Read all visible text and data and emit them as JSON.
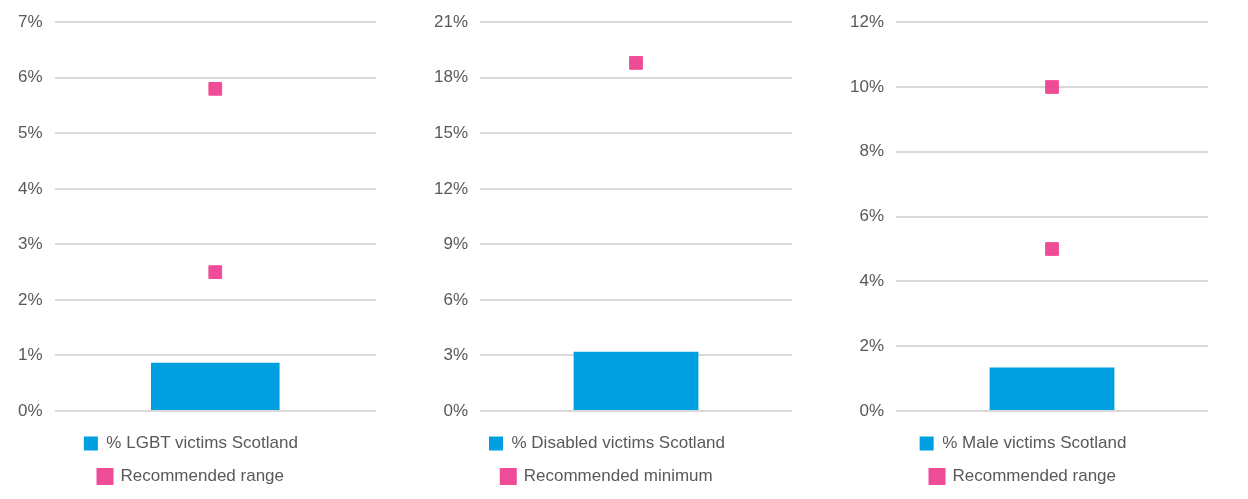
{
  "chart_data": [
    {
      "type": "bar",
      "categories": [
        null
      ],
      "ylim": [
        0,
        7
      ],
      "yticks": [
        {
          "value": 0,
          "label": "0%"
        },
        {
          "value": 1,
          "label": "1%"
        },
        {
          "value": 2,
          "label": "2%"
        },
        {
          "value": 3,
          "label": "3%"
        },
        {
          "value": 4,
          "label": "4%"
        },
        {
          "value": 5,
          "label": "5%"
        },
        {
          "value": 6,
          "label": "6%"
        },
        {
          "value": 7,
          "label": "7%"
        }
      ],
      "grid": "y",
      "legend": "bottom",
      "tick_labels": "y",
      "marker": "square",
      "series": [
        {
          "name": "% LGBT victims Scotland",
          "color": "#009fdf",
          "values": [
            0.87
          ]
        },
        {
          "name": "Recommended range",
          "type": "scatter",
          "color": "#ef4c97",
          "values": [
            5.8
          ]
        },
        {
          "type": "scatter",
          "color": "#ef4c97",
          "values": [
            2.5
          ]
        }
      ]
    },
    {
      "type": "bar",
      "categories": [
        null
      ],
      "ylim": [
        0,
        21
      ],
      "yticks": [
        {
          "value": 0,
          "label": "0%"
        },
        {
          "value": 3,
          "label": "3%"
        },
        {
          "value": 6,
          "label": "6%"
        },
        {
          "value": 9,
          "label": "9%"
        },
        {
          "value": 12,
          "label": "12%"
        },
        {
          "value": 15,
          "label": "15%"
        },
        {
          "value": 18,
          "label": "18%"
        },
        {
          "value": 21,
          "label": "21%"
        }
      ],
      "grid": "y",
      "legend": "bottom",
      "tick_labels": "y",
      "marker": "square",
      "series": [
        {
          "name": "% Disabled victims Scotland",
          "color": "#009fdf",
          "values": [
            3.2
          ]
        },
        {
          "name": "Recommended minimum",
          "type": "scatter",
          "color": "#ef4c97",
          "values": [
            18.8
          ]
        }
      ]
    },
    {
      "type": "bar",
      "categories": [
        null
      ],
      "ylim": [
        0,
        12
      ],
      "yticks": [
        {
          "value": 0,
          "label": "0%"
        },
        {
          "value": 2,
          "label": "2%"
        },
        {
          "value": 4,
          "label": "4%"
        },
        {
          "value": 6,
          "label": "6%"
        },
        {
          "value": 8,
          "label": "8%"
        },
        {
          "value": 10,
          "label": "10%"
        },
        {
          "value": 12,
          "label": "12%"
        }
      ],
      "grid": "y",
      "legend": "bottom",
      "tick_labels": "y",
      "marker": "square",
      "series": [
        {
          "name": "% Male victims Scotland",
          "color": "#009fdf",
          "values": [
            1.34
          ]
        },
        {
          "name": "Recommended range",
          "type": "scatter",
          "color": "#ef4c97",
          "values": [
            10
          ]
        },
        {
          "type": "scatter",
          "color": "#ef4c97",
          "values": [
            5
          ]
        }
      ]
    }
  ]
}
